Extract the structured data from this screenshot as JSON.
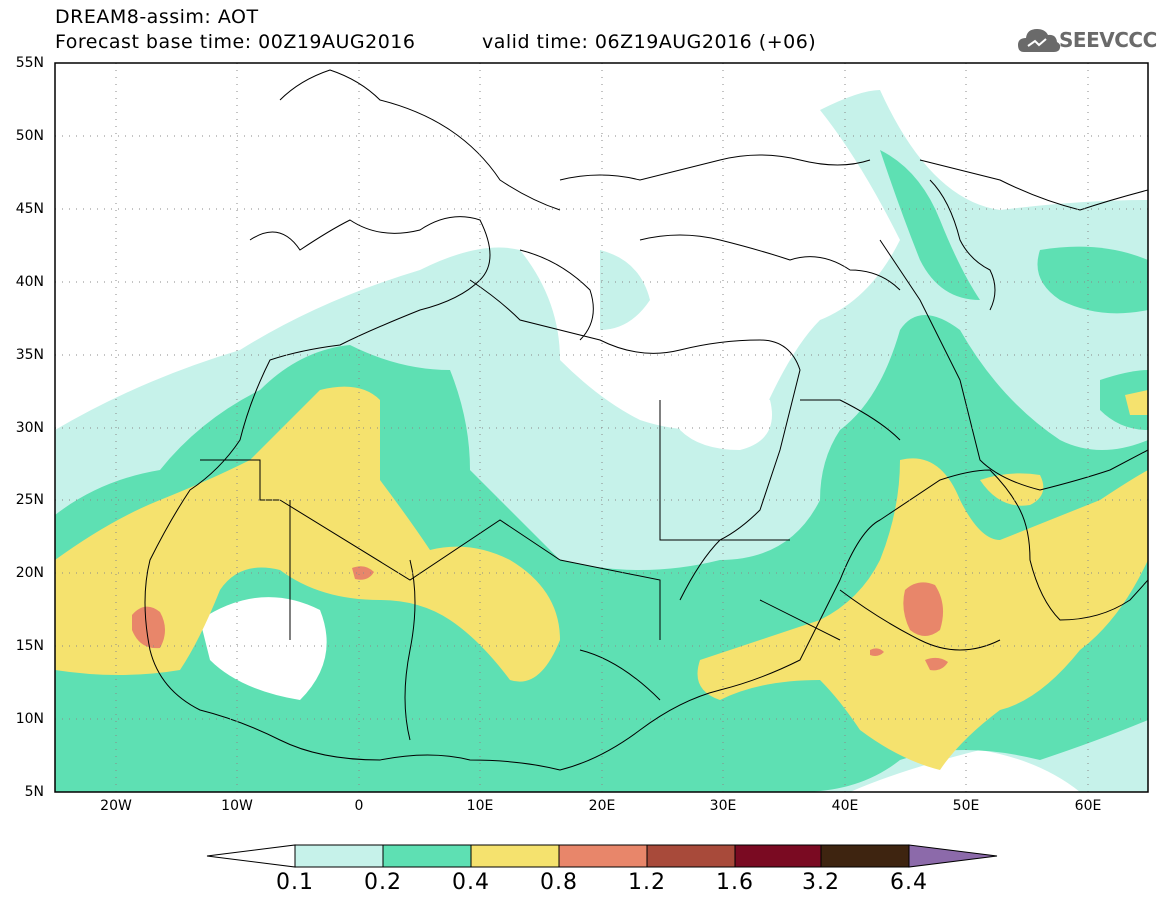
{
  "header": {
    "line1": "DREAM8-assim: AOT",
    "line2_base": "Forecast base time: 00Z19AUG2016",
    "line2_valid": "valid time: 06Z19AUG2016 (+06)",
    "logo_text": "SEEVCCC",
    "logo_icon": "cloud-icon"
  },
  "map": {
    "lat_labels": [
      "55N",
      "50N",
      "45N",
      "40N",
      "35N",
      "30N",
      "25N",
      "20N",
      "15N",
      "10N",
      "5N"
    ],
    "lon_labels": [
      "20W",
      "10W",
      "0",
      "10E",
      "20E",
      "30E",
      "40E",
      "50E",
      "60E"
    ],
    "lat_range": [
      5,
      55
    ],
    "lon_range": [
      -25,
      65
    ],
    "grid": "dotted"
  },
  "colorbar": {
    "colors": [
      "#ffffff",
      "#c6f2ea",
      "#5ee0b3",
      "#f5e26e",
      "#e8866a",
      "#a84a3a",
      "#7a0a22",
      "#3e2410",
      "#8c6aaa"
    ],
    "labels": [
      "0.1",
      "0.2",
      "0.4",
      "0.8",
      "1.2",
      "1.6",
      "3.2",
      "6.4"
    ]
  },
  "colors": {
    "c01": "#c6f2ea",
    "c02": "#5ee0b3",
    "c04": "#f5e26e",
    "c08": "#e8866a",
    "border": "#000000"
  }
}
